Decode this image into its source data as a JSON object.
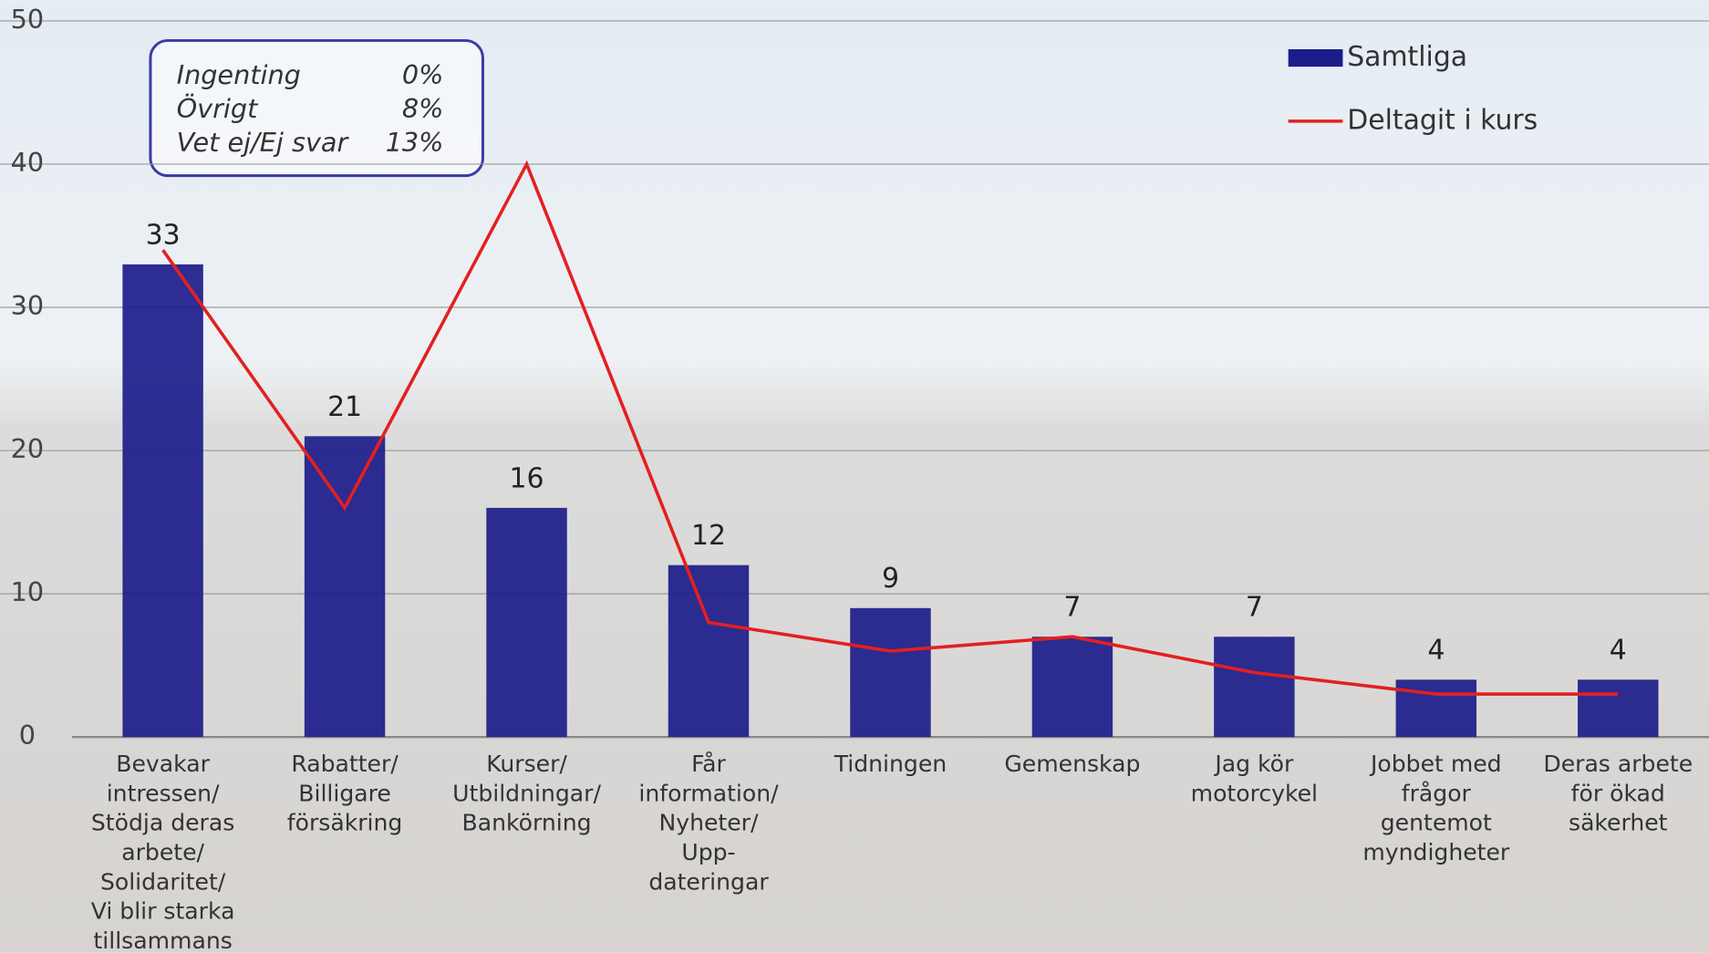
{
  "chart_data": {
    "type": "bar",
    "categories": [
      [
        "Bevakar",
        "intressen/",
        "Stödja deras",
        "arbete/",
        "Solidaritet/",
        "Vi blir starka",
        "tillsammans"
      ],
      [
        "Rabatter/",
        "Billigare",
        "försäkring"
      ],
      [
        "Kurser/",
        "Utbildningar/",
        "Bankörning"
      ],
      [
        "Får",
        "information/",
        "Nyheter/",
        "Upp-",
        "dateringar"
      ],
      [
        "Tidningen"
      ],
      [
        "Gemenskap"
      ],
      [
        "Jag kör",
        "motorcykel"
      ],
      [
        "Jobbet med",
        "frågor",
        "gentemot",
        "myndigheter"
      ],
      [
        "Deras arbete",
        "för ökad",
        "säkerhet"
      ]
    ],
    "series": [
      {
        "name": "Samtliga",
        "type": "bar",
        "color": "#1c1c8a",
        "values": [
          33,
          21,
          16,
          12,
          9,
          7,
          7,
          4,
          4
        ]
      },
      {
        "name": "Deltagit i kurs",
        "type": "line",
        "color": "#e3201f",
        "values": [
          34,
          16,
          40,
          8,
          6,
          7,
          4.5,
          3,
          3
        ]
      }
    ],
    "ylim": [
      0,
      50
    ],
    "yticks": [
      0,
      10,
      20,
      30,
      40,
      50
    ],
    "grid": true,
    "legend": "top-right",
    "annotation": [
      {
        "label": "Ingenting",
        "value": "0%"
      },
      {
        "label": "Övrigt",
        "value": "8%"
      },
      {
        "label": "Vet ej/Ej svar",
        "value": "13%"
      }
    ]
  }
}
